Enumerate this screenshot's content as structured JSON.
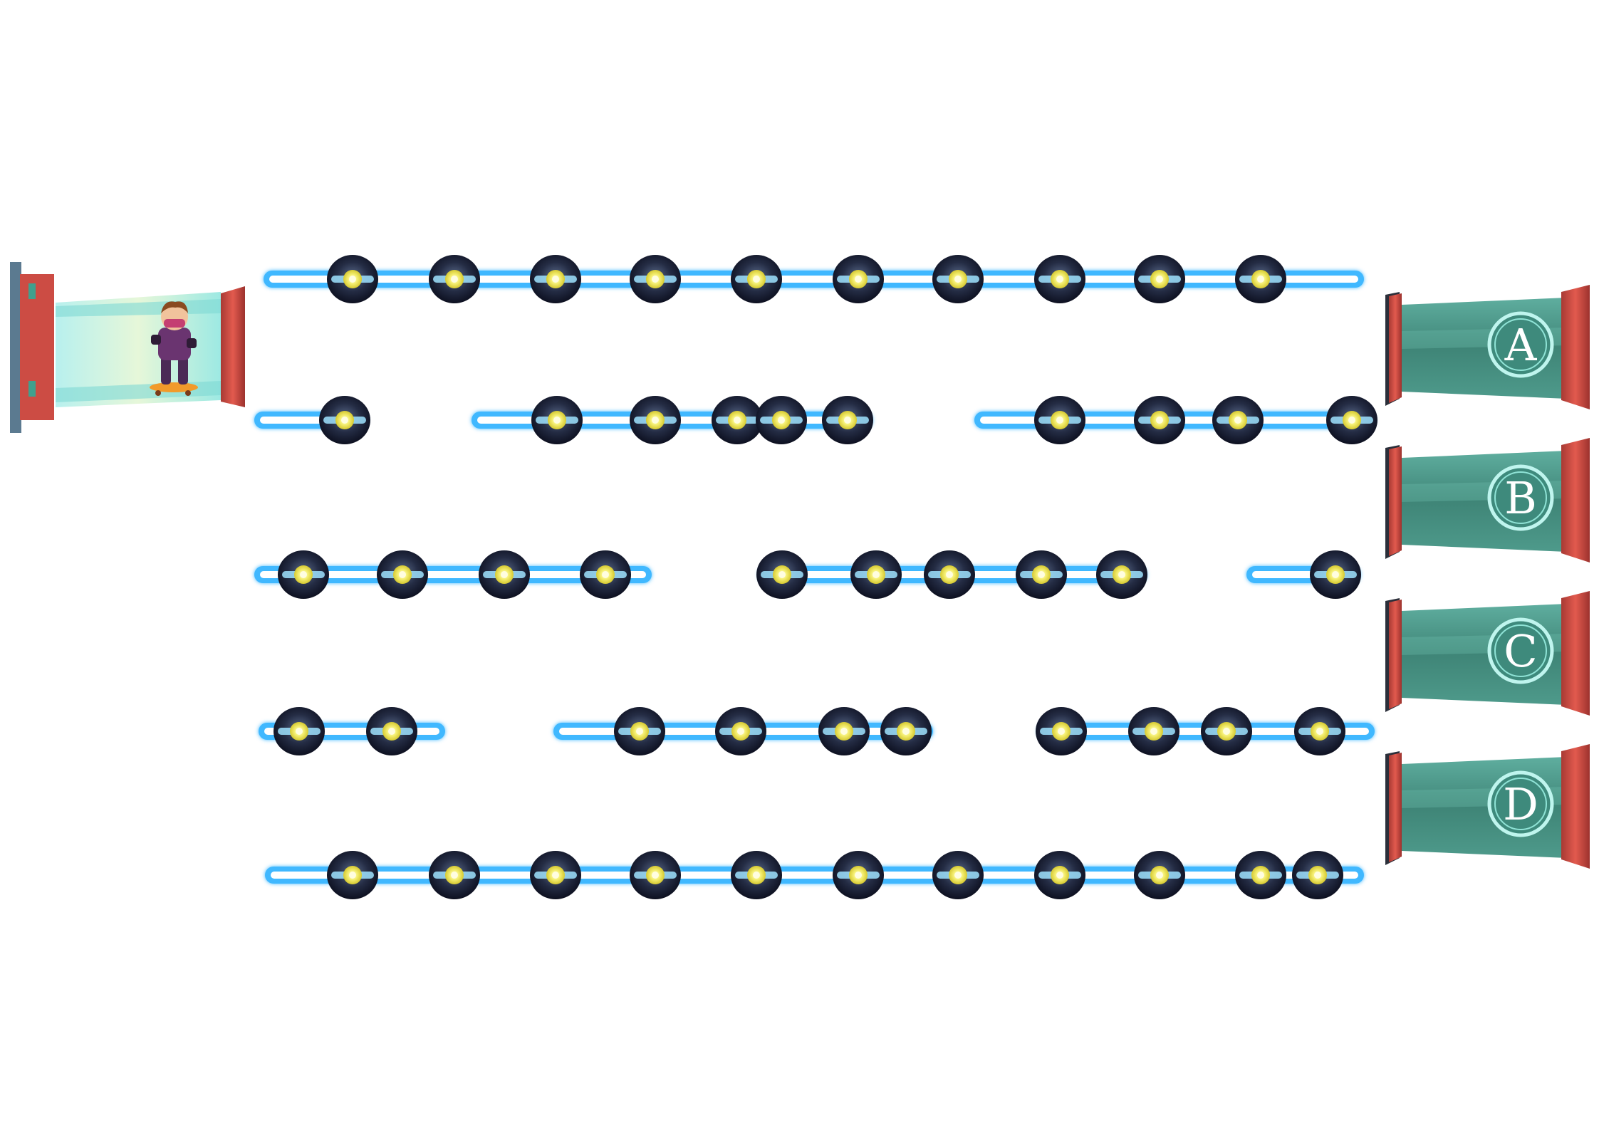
{
  "start_portal": {
    "character": "skateboarder-ninja-character",
    "icon": "character-icon"
  },
  "gates": [
    {
      "label": "A",
      "icon": "gate-portal-icon"
    },
    {
      "label": "B",
      "icon": "gate-portal-icon"
    },
    {
      "label": "C",
      "icon": "gate-portal-icon"
    },
    {
      "label": "D",
      "icon": "gate-portal-icon"
    }
  ],
  "colors": {
    "beam": "#3fb8ff",
    "beam_core": "#ffffff",
    "node_dark": "#1c2236",
    "node_glow": "#f4f07a",
    "portal_teal": "#4f9a8c",
    "portal_red": "#d9534a",
    "background": "#ffffff"
  }
}
